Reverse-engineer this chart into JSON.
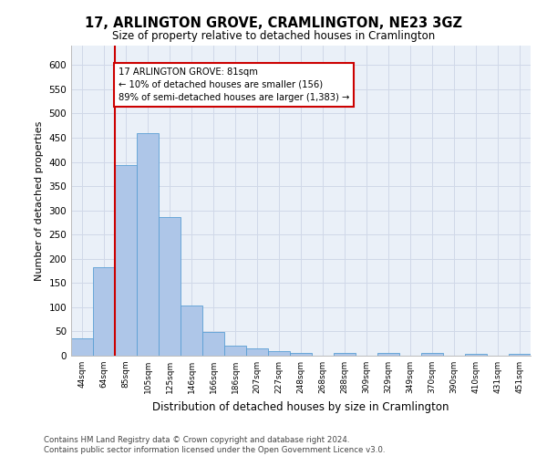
{
  "title": "17, ARLINGTON GROVE, CRAMLINGTON, NE23 3GZ",
  "subtitle": "Size of property relative to detached houses in Cramlington",
  "xlabel": "Distribution of detached houses by size in Cramlington",
  "ylabel": "Number of detached properties",
  "bar_labels": [
    "44sqm",
    "64sqm",
    "85sqm",
    "105sqm",
    "125sqm",
    "146sqm",
    "166sqm",
    "186sqm",
    "207sqm",
    "227sqm",
    "248sqm",
    "268sqm",
    "288sqm",
    "309sqm",
    "329sqm",
    "349sqm",
    "370sqm",
    "390sqm",
    "410sqm",
    "431sqm",
    "451sqm"
  ],
  "bar_values": [
    35,
    182,
    393,
    460,
    287,
    103,
    49,
    20,
    15,
    9,
    5,
    0,
    5,
    0,
    5,
    0,
    5,
    0,
    4,
    0,
    4
  ],
  "bar_color": "#aec6e8",
  "bar_edge_color": "#5a9fd4",
  "grid_color": "#d0d8e8",
  "background_color": "#eaf0f8",
  "vline_x_index": 2,
  "vline_color": "#cc0000",
  "annotation_text": "17 ARLINGTON GROVE: 81sqm\n← 10% of detached houses are smaller (156)\n89% of semi-detached houses are larger (1,383) →",
  "annotation_box_color": "#ffffff",
  "annotation_box_edge_color": "#cc0000",
  "ylim": [
    0,
    640
  ],
  "yticks": [
    0,
    50,
    100,
    150,
    200,
    250,
    300,
    350,
    400,
    450,
    500,
    550,
    600
  ],
  "footer_line1": "Contains HM Land Registry data © Crown copyright and database right 2024.",
  "footer_line2": "Contains public sector information licensed under the Open Government Licence v3.0."
}
